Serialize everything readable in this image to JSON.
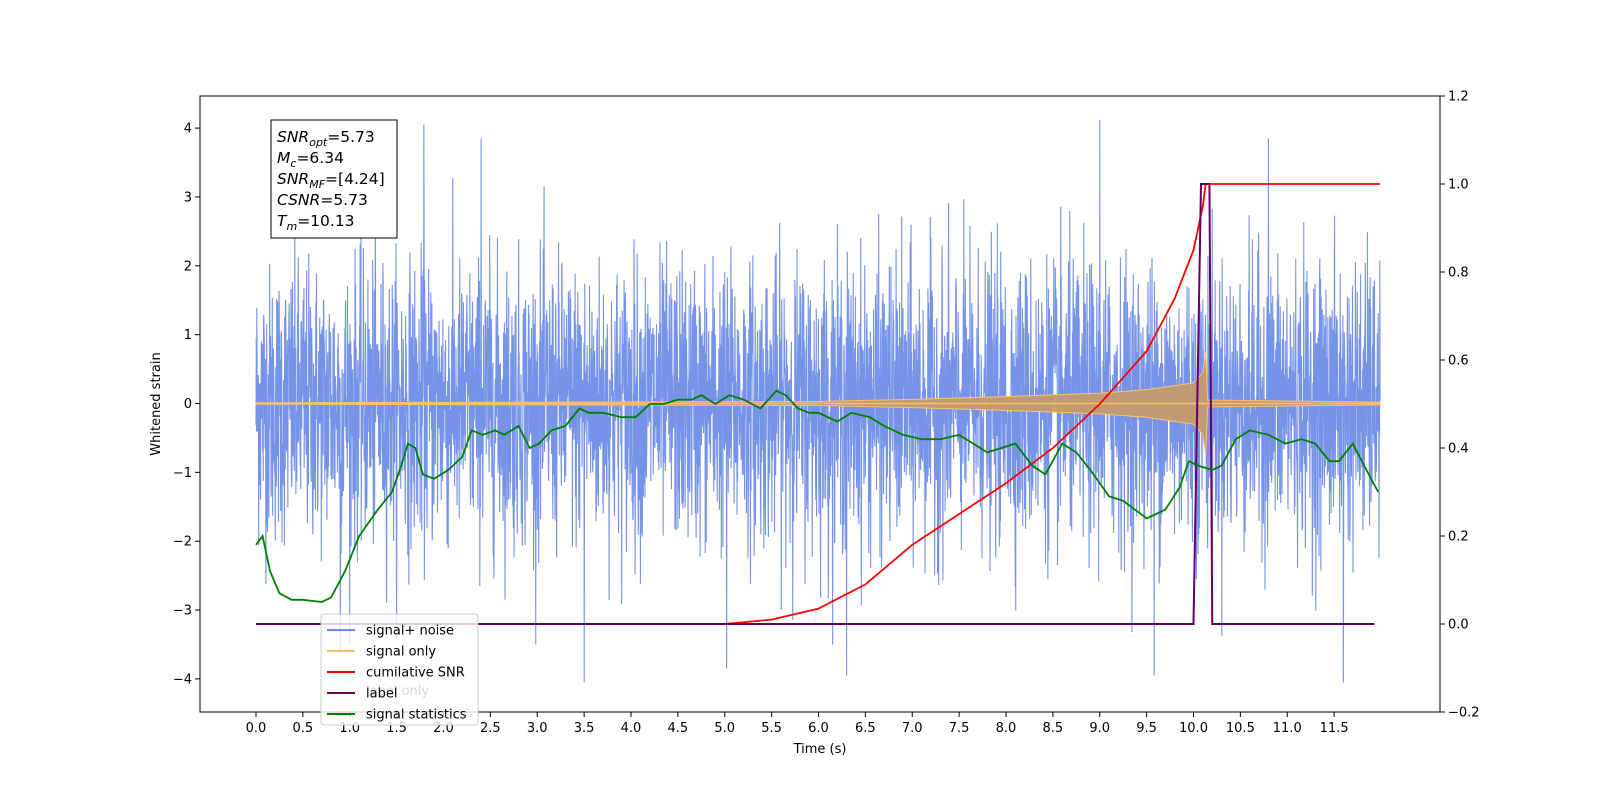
{
  "chart_data": {
    "type": "line",
    "title": "",
    "xlabel": "Time (s)",
    "ylabel": "Whitened strain",
    "xlim": [
      -0.6,
      12.6
    ],
    "ylim": [
      -4.45,
      4.5
    ],
    "y2lim": [
      -0.2,
      1.2
    ],
    "x_ticks": [
      "0.0",
      "0.5",
      "1.0",
      "1.5",
      "2.0",
      "2.5",
      "3.0",
      "3.5",
      "4.0",
      "4.5",
      "5.0",
      "5.5",
      "6.0",
      "6.5",
      "7.0",
      "7.5",
      "8.0",
      "8.5",
      "9.0",
      "9.5",
      "10.0",
      "10.5",
      "11.0",
      "11.5"
    ],
    "y_ticks": [
      "−4",
      "−3",
      "−2",
      "−1",
      "0",
      "1",
      "2",
      "3",
      "4"
    ],
    "y2_ticks": [
      "−0.2",
      "0.0",
      "0.2",
      "0.4",
      "0.6",
      "0.8",
      "1.0",
      "1.2"
    ],
    "grid": false,
    "legend_position": "lower-left",
    "legend": [
      {
        "label": "signal+ noise",
        "color": "#6f8de6"
      },
      {
        "label": "signal only",
        "color": "#ffc168"
      },
      {
        "label": "cumilative SNR",
        "color": "#ff0000"
      },
      {
        "label": "label",
        "color": "#660066"
      },
      {
        "label": "signal statistics",
        "color": "#008000"
      }
    ],
    "hidden_text": "label only",
    "annotation": [
      {
        "base": "SNR",
        "sub": "opt",
        "rest": "=5.73"
      },
      {
        "base": "M",
        "sub": "c",
        "rest": "=6.34"
      },
      {
        "base": "SNR",
        "sub": "MF",
        "rest": "=[4.24]"
      },
      {
        "base": "CSNR",
        "sub": "",
        "rest": "=5.73"
      },
      {
        "base": "T",
        "sub": "m",
        "rest": "=10.13"
      }
    ],
    "series": [
      {
        "name": "signal+ noise",
        "axis": "left",
        "color": "#6f8de6",
        "x_range": [
          0.0,
          11.99
        ],
        "std": 1.0,
        "peaks": [
          {
            "x": 1.79,
            "y": 4.05
          },
          {
            "x": 3.5,
            "y": -4.05
          },
          {
            "x": 5.02,
            "y": -3.85
          },
          {
            "x": 9.0,
            "y": 4.12
          },
          {
            "x": 9.58,
            "y": -3.95
          },
          {
            "x": 10.8,
            "y": 3.85
          },
          {
            "x": 11.6,
            "y": -4.05
          },
          {
            "x": 2.4,
            "y": 3.85
          },
          {
            "x": 6.3,
            "y": -3.95
          },
          {
            "x": 0.9,
            "y": -3.6
          }
        ]
      },
      {
        "name": "signal only",
        "axis": "left",
        "color": "#ffc168",
        "envelope": [
          [
            0.0,
            0.01
          ],
          [
            6.0,
            0.03
          ],
          [
            7.0,
            0.06
          ],
          [
            8.0,
            0.1
          ],
          [
            9.0,
            0.15
          ],
          [
            9.5,
            0.2
          ],
          [
            10.0,
            0.3
          ],
          [
            10.1,
            0.45
          ],
          [
            10.13,
            0.75
          ],
          [
            10.15,
            0.05
          ],
          [
            12.0,
            0.02
          ]
        ]
      },
      {
        "name": "cumilative SNR",
        "axis": "right",
        "color": "#ff0000",
        "x": [
          0.0,
          4.5,
          5.0,
          5.5,
          6.0,
          6.5,
          7.0,
          7.5,
          8.0,
          8.5,
          9.0,
          9.5,
          9.8,
          10.0,
          10.1,
          10.13,
          11.99
        ],
        "y": [
          0.0,
          0.0,
          0.0,
          0.01,
          0.035,
          0.09,
          0.18,
          0.25,
          0.32,
          0.4,
          0.5,
          0.62,
          0.74,
          0.85,
          0.95,
          1.0,
          1.0
        ]
      },
      {
        "name": "label",
        "axis": "right",
        "color": "#660066",
        "x": [
          0.0,
          10.0,
          10.08,
          10.17,
          10.2,
          11.93
        ],
        "y": [
          0.0,
          0.0,
          1.0,
          1.0,
          0.0,
          0.0
        ]
      },
      {
        "name": "signal statistics",
        "axis": "right",
        "color": "#008000",
        "x": [
          0.0,
          0.07,
          0.15,
          0.25,
          0.38,
          0.5,
          0.7,
          0.8,
          0.95,
          1.1,
          1.3,
          1.45,
          1.55,
          1.62,
          1.7,
          1.78,
          1.9,
          2.05,
          2.2,
          2.3,
          2.42,
          2.55,
          2.65,
          2.8,
          2.92,
          3.02,
          3.15,
          3.3,
          3.45,
          3.55,
          3.7,
          3.9,
          4.05,
          4.2,
          4.35,
          4.5,
          4.65,
          4.75,
          4.9,
          5.05,
          5.2,
          5.38,
          5.55,
          5.65,
          5.78,
          5.9,
          6.0,
          6.2,
          6.35,
          6.55,
          6.7,
          6.9,
          7.1,
          7.3,
          7.5,
          7.65,
          7.8,
          7.95,
          8.1,
          8.28,
          8.42,
          8.6,
          8.75,
          8.9,
          9.1,
          9.25,
          9.5,
          9.7,
          9.85,
          9.95,
          10.05,
          10.2,
          10.3,
          10.45,
          10.6,
          10.8,
          10.98,
          11.15,
          11.3,
          11.45,
          11.55,
          11.7,
          11.82,
          11.97
        ],
        "y": [
          0.18,
          0.2,
          0.12,
          0.07,
          0.055,
          0.055,
          0.05,
          0.06,
          0.12,
          0.2,
          0.26,
          0.3,
          0.36,
          0.41,
          0.4,
          0.34,
          0.33,
          0.35,
          0.38,
          0.44,
          0.43,
          0.44,
          0.43,
          0.45,
          0.4,
          0.41,
          0.44,
          0.45,
          0.49,
          0.48,
          0.48,
          0.47,
          0.47,
          0.5,
          0.5,
          0.51,
          0.51,
          0.52,
          0.5,
          0.52,
          0.51,
          0.49,
          0.53,
          0.52,
          0.49,
          0.48,
          0.48,
          0.46,
          0.48,
          0.47,
          0.45,
          0.43,
          0.42,
          0.42,
          0.43,
          0.41,
          0.39,
          0.4,
          0.41,
          0.36,
          0.34,
          0.41,
          0.39,
          0.35,
          0.29,
          0.28,
          0.24,
          0.26,
          0.31,
          0.37,
          0.36,
          0.35,
          0.36,
          0.42,
          0.44,
          0.43,
          0.41,
          0.42,
          0.41,
          0.37,
          0.37,
          0.41,
          0.36,
          0.3
        ]
      }
    ]
  }
}
